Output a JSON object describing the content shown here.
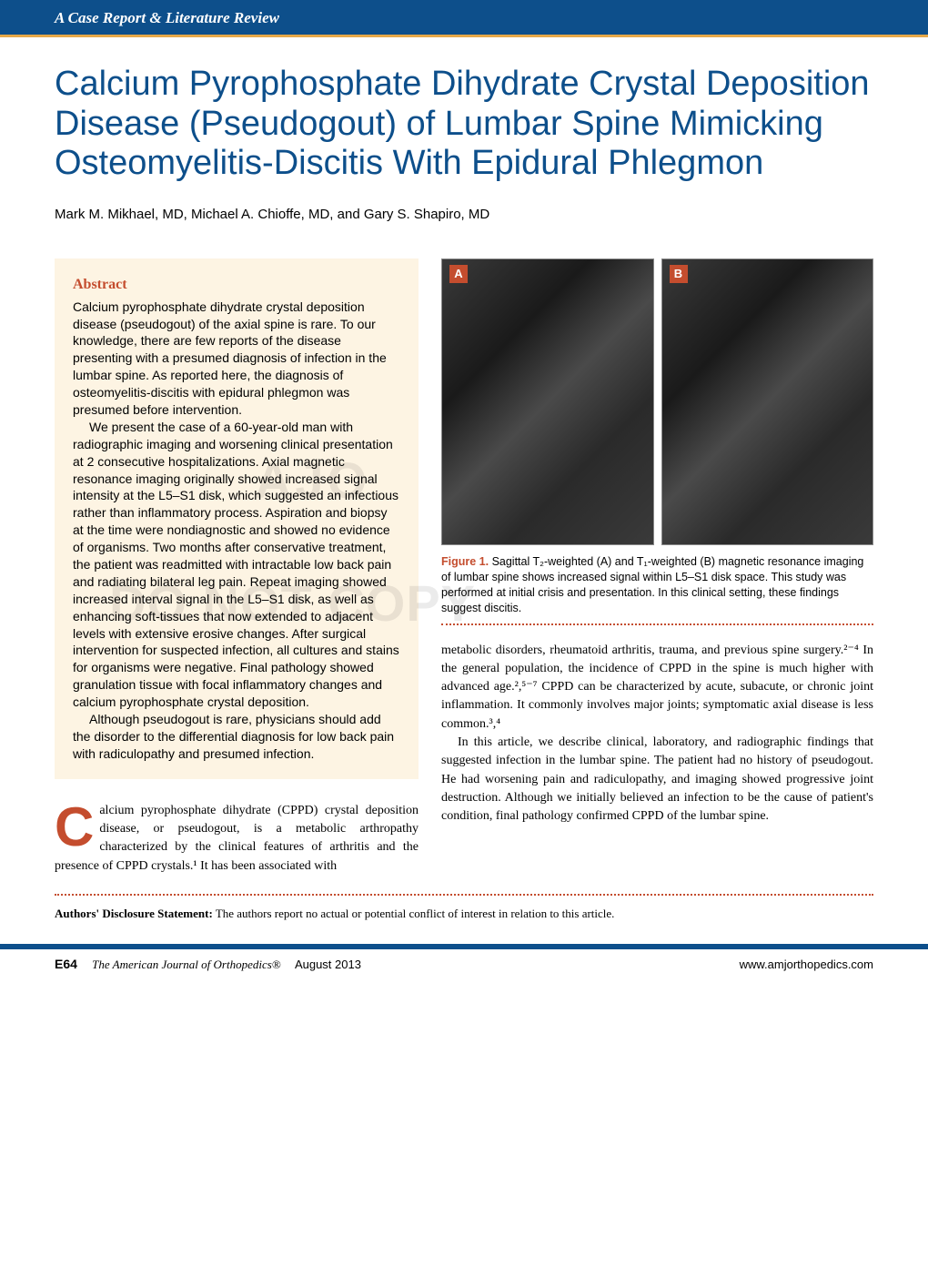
{
  "header": {
    "section_label": "A Case Report & Literature Review"
  },
  "article": {
    "title": "Calcium Pyrophosphate Dihydrate Crystal Deposition Disease (Pseudogout) of Lumbar Spine Mimicking Osteomyelitis-Discitis With Epidural Phlegmon",
    "authors": "Mark M. Mikhael, MD, Michael A. Chioffe, MD, and Gary S. Shapiro, MD"
  },
  "abstract": {
    "heading": "Abstract",
    "p1": "Calcium pyrophosphate dihydrate crystal deposition disease (pseudogout) of the axial spine is rare. To our knowledge, there are few reports of the disease presenting with a presumed diagnosis of infection in the lumbar spine. As reported here, the diagnosis of osteomyelitis-discitis with epidural phlegmon was presumed before intervention.",
    "p2": "We present the case of a 60-year-old man with radiographic imaging and worsening clinical presentation at 2 consecutive hospitalizations. Axial magnetic resonance imaging originally showed increased signal intensity at the L5–S1 disk, which suggested an infectious rather than inflammatory process. Aspiration and biopsy at the time were nondiagnostic and showed no evidence of organisms. Two months after conservative treatment, the patient was readmitted with intractable low back pain and radiating bilateral leg pain. Repeat imaging showed increased interval signal in the L5–S1 disk, as well as enhancing soft-tissues that now extended to adjacent levels with extensive erosive changes. After surgical intervention for suspected infection, all cultures and stains for organisms were negative. Final pathology showed granulation tissue with focal inflammatory changes and calcium pyrophosphate crystal deposition.",
    "p3": "Although pseudogout is rare, physicians should add the disorder to the differential diagnosis for low back pain with radiculopathy and presumed infection."
  },
  "watermarks": {
    "ajo": "AJO",
    "copy": "DO NOT COPY"
  },
  "figure1": {
    "label_a": "A",
    "label_b": "B",
    "caption_label": "Figure 1.",
    "caption_text": " Sagittal T₂-weighted (A) and T₁-weighted (B) magnetic resonance imaging of lumbar spine shows increased signal within L5–S1 disk space. This study was performed at initial crisis and presentation. In this clinical setting, these findings suggest discitis."
  },
  "body": {
    "intro_dropcap": "C",
    "intro_text": "alcium pyrophosphate dihydrate (CPPD) crystal deposition disease, or pseudogout, is a metabolic arthropathy characterized by the clinical features of arthritis and the presence of CPPD crystals.¹ It has been associated with",
    "right_p1": "metabolic disorders, rheumatoid arthritis, trauma, and previous spine surgery.²⁻⁴ In the general population, the incidence of CPPD in the spine is much higher with advanced age.²,⁵⁻⁷ CPPD can be characterized by acute, subacute, or chronic joint inflammation. It commonly involves major joints; symptomatic axial disease is less common.³,⁴",
    "right_p2": "In this article, we describe clinical, laboratory, and radiographic findings that suggested infection in the lumbar spine. The patient had no history of pseudogout. He had worsening pain and radiculopathy, and imaging showed progressive joint destruction. Although we initially believed an infection to be the cause of patient's condition, final pathology confirmed CPPD of the lumbar spine."
  },
  "disclosure": {
    "label": "Authors' Disclosure Statement:",
    "text": " The authors report no actual or potential conflict of interest in relation to this article."
  },
  "footer": {
    "page_number": "E64",
    "journal": "The American Journal of Orthopedics®",
    "issue": "August 2013",
    "url": "www.amjorthopedics.com"
  },
  "colors": {
    "banner_blue": "#0d4f8b",
    "accent_orange": "#c44d2e",
    "banner_underline": "#e6a848",
    "abstract_bg": "#fdf4e3",
    "watermark": "rgba(0,0,0,0.08)"
  },
  "typography": {
    "title_fontsize": 38,
    "body_fontsize": 14,
    "abstract_fontsize": 14,
    "caption_fontsize": 12.5,
    "dropcap_fontsize": 60
  }
}
